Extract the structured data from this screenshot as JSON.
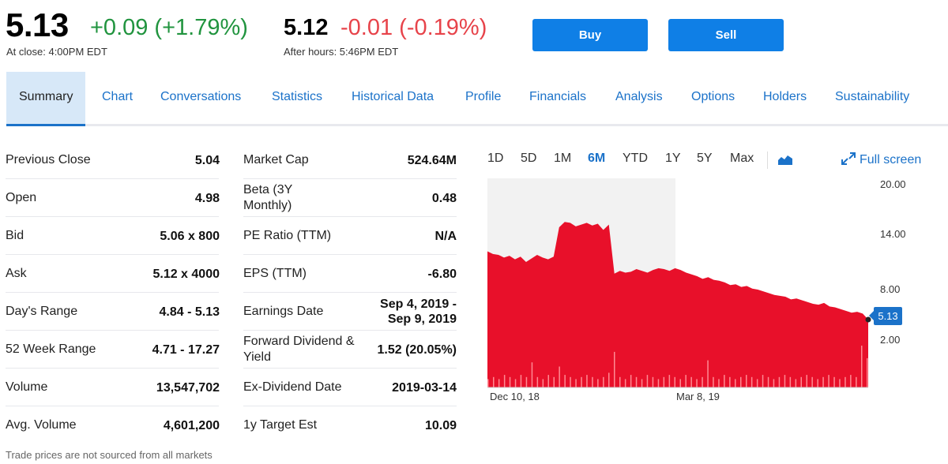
{
  "quote": {
    "price": "5.13",
    "change": "+0.09 (+1.79%)",
    "close_label": "At close: 4:00PM EDT",
    "after_hours_price": "5.12",
    "after_hours_change": "-0.01 (-0.19%)",
    "after_hours_label": "After hours: 5:46PM EDT"
  },
  "actions": {
    "buy_label": "Buy",
    "sell_label": "Sell"
  },
  "tabs": [
    {
      "label": "Summary",
      "active": true
    },
    {
      "label": "Chart"
    },
    {
      "label": "Conversations"
    },
    {
      "label": "Statistics"
    },
    {
      "label": "Historical Data"
    },
    {
      "label": "Profile"
    },
    {
      "label": "Financials"
    },
    {
      "label": "Analysis"
    },
    {
      "label": "Options"
    },
    {
      "label": "Holders"
    },
    {
      "label": "Sustainability"
    }
  ],
  "stats_left": [
    {
      "label": "Previous Close",
      "value": "5.04"
    },
    {
      "label": "Open",
      "value": "4.98"
    },
    {
      "label": "Bid",
      "value": "5.06 x 800"
    },
    {
      "label": "Ask",
      "value": "5.12 x 4000"
    },
    {
      "label": "Day's Range",
      "value": "4.84 - 5.13"
    },
    {
      "label": "52 Week Range",
      "value": "4.71 - 17.27"
    },
    {
      "label": "Volume",
      "value": "13,547,702"
    },
    {
      "label": "Avg. Volume",
      "value": "4,601,200"
    }
  ],
  "stats_right": [
    {
      "label": "Market Cap",
      "value": "524.64M"
    },
    {
      "label": "Beta (3Y Monthly)",
      "value": "0.48"
    },
    {
      "label": "PE Ratio (TTM)",
      "value": "N/A"
    },
    {
      "label": "EPS (TTM)",
      "value": "-6.80"
    },
    {
      "label": "Earnings Date",
      "value": "Sep 4, 2019 - Sep 9, 2019"
    },
    {
      "label": "Forward Dividend & Yield",
      "value": "1.52 (20.05%)"
    },
    {
      "label": "Ex-Dividend Date",
      "value": "2019-03-14"
    },
    {
      "label": "1y Target Est",
      "value": "10.09"
    }
  ],
  "disclaimer": "Trade prices are not sourced from all markets",
  "chart_controls": {
    "ranges": [
      "1D",
      "5D",
      "1M",
      "6M",
      "YTD",
      "1Y",
      "5Y",
      "Max"
    ],
    "active_range": "6M",
    "fullscreen_label": "Full screen"
  },
  "chart_data": {
    "type": "area",
    "color": "#e8102a",
    "y_ticks": [
      "20.00",
      "14.00",
      "8.00",
      "2.00"
    ],
    "ylim": [
      -2.5,
      21
    ],
    "x_ticks": [
      "Dec 10, 18",
      "Mar 8, 19"
    ],
    "current_price_label": "5.13",
    "price_series": [
      12.8,
      12.5,
      12.4,
      12.1,
      12.3,
      11.9,
      12.2,
      11.6,
      12.0,
      12.4,
      12.1,
      11.9,
      12.2,
      15.5,
      16.1,
      16.0,
      15.6,
      15.8,
      16.0,
      15.7,
      15.9,
      15.2,
      15.8,
      10.3,
      10.6,
      10.4,
      10.5,
      10.8,
      10.6,
      10.4,
      10.7,
      10.9,
      10.8,
      10.6,
      10.9,
      10.7,
      10.4,
      10.2,
      10.0,
      9.7,
      9.9,
      9.6,
      9.5,
      9.3,
      9.0,
      9.1,
      8.8,
      8.9,
      8.6,
      8.5,
      8.3,
      8.1,
      7.9,
      7.8,
      7.7,
      7.4,
      7.5,
      7.3,
      7.1,
      6.9,
      6.8,
      7.0,
      6.6,
      6.5,
      6.3,
      6.1,
      5.9,
      6.0,
      5.8,
      5.13
    ],
    "volume_spikes": [
      0.04,
      0.05,
      0.04,
      0.06,
      0.05,
      0.04,
      0.06,
      0.05,
      0.12,
      0.05,
      0.04,
      0.06,
      0.05,
      0.1,
      0.06,
      0.05,
      0.04,
      0.05,
      0.06,
      0.05,
      0.04,
      0.05,
      0.07,
      0.17,
      0.05,
      0.04,
      0.06,
      0.05,
      0.04,
      0.06,
      0.05,
      0.04,
      0.05,
      0.06,
      0.05,
      0.04,
      0.06,
      0.05,
      0.04,
      0.05,
      0.13,
      0.05,
      0.04,
      0.06,
      0.05,
      0.04,
      0.05,
      0.06,
      0.05,
      0.04,
      0.06,
      0.05,
      0.04,
      0.05,
      0.06,
      0.05,
      0.04,
      0.05,
      0.06,
      0.05,
      0.04,
      0.05,
      0.06,
      0.05,
      0.04,
      0.05,
      0.06,
      0.05,
      0.2,
      0.14
    ]
  }
}
